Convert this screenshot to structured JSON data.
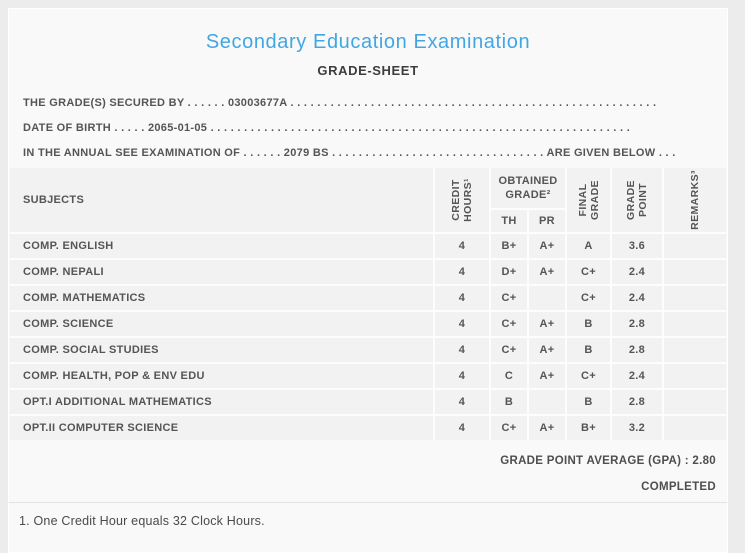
{
  "page": {
    "title": "Secondary Education Examination",
    "subtitle": "GRADE-SHEET",
    "title_color": "#42a6e4"
  },
  "info_lines": {
    "grades_secured_by": "THE GRADE(S) SECURED BY . . . . . . 03003677A . . . . . . . . . . . . . . . . . . . . . . . . . . . . . . . . . . . . . . . . . . . . . . . . . . . . . . .",
    "date_of_birth": "DATE OF BIRTH . . . . . 2065-01-05 . . . . . . . . . . . . . . . . . . . . . . . . . . . . . . . . . . . . . . . . . . . . . . . . . . . . . . . . . . . . . . .",
    "examination": "IN THE ANNUAL SEE EXAMINATION OF . . . . . . 2079 BS . . . . . . . . . . . . . . . . . . . . . . . . . . . . . . . . ARE GIVEN BELOW . . ."
  },
  "table": {
    "headers": {
      "subjects": "SUBJECTS",
      "credit_hours": "CREDIT\nHOURS¹",
      "obtained_grade": "OBTAINED\nGRADE²",
      "th": "TH",
      "pr": "PR",
      "final_grade": "FINAL\nGRADE",
      "grade_point": "GRADE\nPOINT",
      "remarks": "REMARKS³"
    },
    "rows": [
      [
        "COMP. ENGLISH",
        "4",
        "B+",
        "A+",
        "A",
        "3.6",
        ""
      ],
      [
        "COMP. NEPALI",
        "4",
        "D+",
        "A+",
        "C+",
        "2.4",
        ""
      ],
      [
        "COMP. MATHEMATICS",
        "4",
        "C+",
        "",
        "C+",
        "2.4",
        ""
      ],
      [
        "COMP. SCIENCE",
        "4",
        "C+",
        "A+",
        "B",
        "2.8",
        ""
      ],
      [
        "COMP. SOCIAL STUDIES",
        "4",
        "C+",
        "A+",
        "B",
        "2.8",
        ""
      ],
      [
        "COMP. HEALTH, POP & ENV EDU",
        "4",
        "C",
        "A+",
        "C+",
        "2.4",
        ""
      ],
      [
        "OPT.I ADDITIONAL MATHEMATICS",
        "4",
        "B",
        "",
        "B",
        "2.8",
        ""
      ],
      [
        "OPT.II COMPUTER SCIENCE",
        "4",
        "C+",
        "A+",
        "B+",
        "3.2",
        ""
      ]
    ]
  },
  "summary": {
    "gpa_line": "GRADE POINT AVERAGE (GPA) : 2.80",
    "status": "COMPLETED"
  },
  "footnote": "1. One Credit Hour equals 32 Clock Hours."
}
